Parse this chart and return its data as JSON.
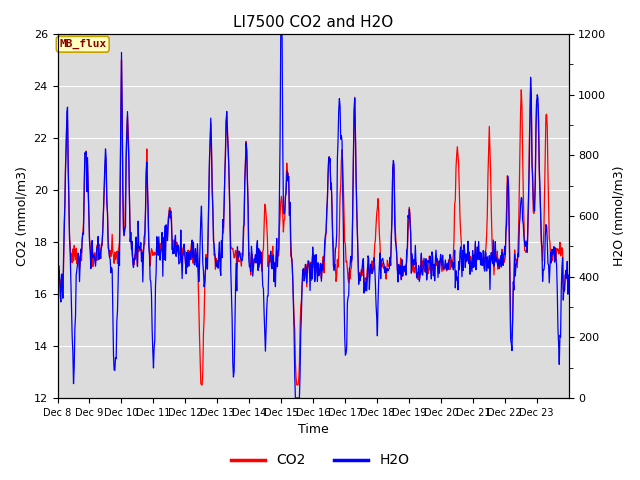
{
  "title": "LI7500 CO2 and H2O",
  "xlabel": "Time",
  "ylabel_left": "CO2 (mmol/m3)",
  "ylabel_right": "H2O (mmol/m3)",
  "ylim_left": [
    12,
    26
  ],
  "ylim_right": [
    0,
    1200
  ],
  "yticks_left": [
    12,
    14,
    16,
    18,
    20,
    22,
    24,
    26
  ],
  "yticks_right": [
    0,
    200,
    400,
    600,
    800,
    1000,
    1200
  ],
  "xtick_labels": [
    "Dec 8",
    "Dec 9",
    "Dec 10",
    "Dec 11",
    "Dec 12",
    "Dec 13",
    "Dec 14",
    "Dec 15",
    "Dec 16",
    "Dec 17",
    "Dec 18",
    "Dec 19",
    "Dec 20",
    "Dec 21",
    "Dec 22",
    "Dec 23"
  ],
  "co2_color": "#ff0000",
  "h2o_color": "#0000ff",
  "background_color": "#ffffff",
  "plot_bg_color": "#dcdcdc",
  "grid_color": "#ffffff",
  "annotation_text": "MB_flux",
  "annotation_bg": "#ffffc0",
  "annotation_border": "#c8a000",
  "legend_co2": "CO2",
  "legend_h2o": "H2O",
  "title_fontsize": 11,
  "axis_label_fontsize": 9,
  "tick_fontsize": 8,
  "co2_linewidth": 0.9,
  "h2o_linewidth": 0.9
}
